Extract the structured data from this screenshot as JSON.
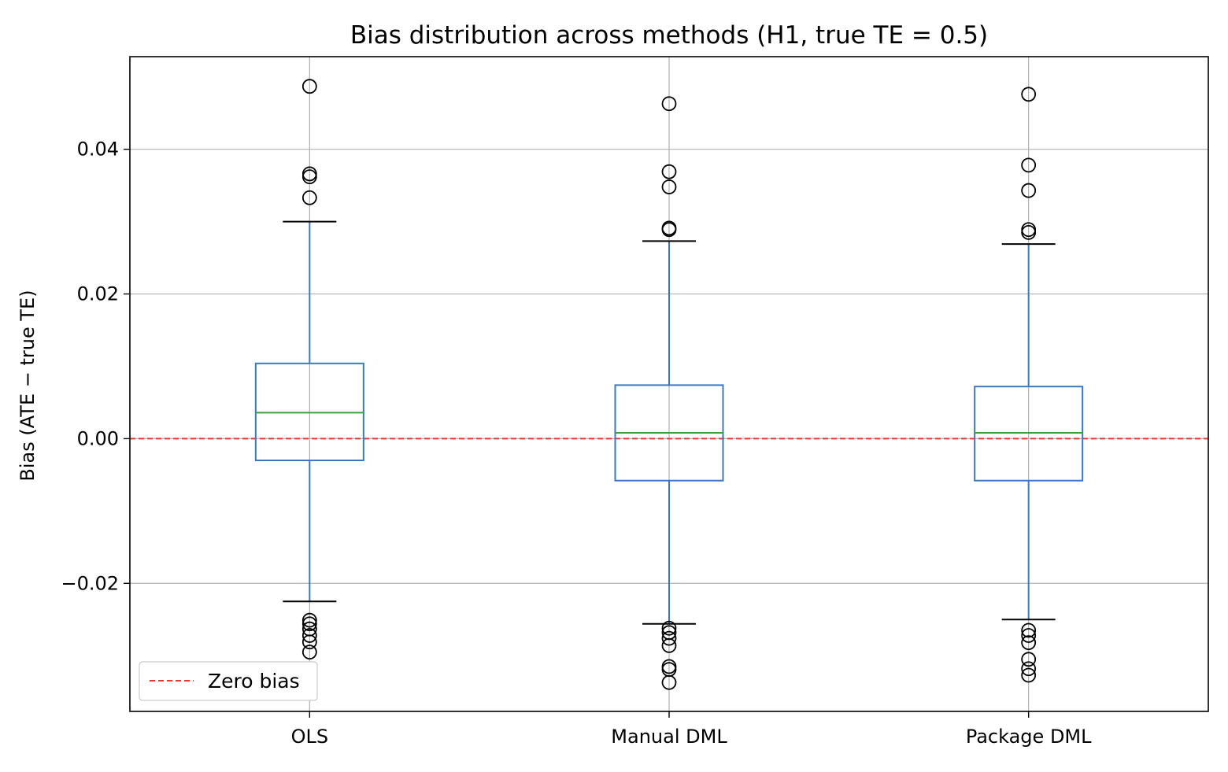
{
  "chart_data": {
    "type": "box",
    "title": "Bias distribution across methods (H1, true TE = 0.5)",
    "xlabel": "",
    "ylabel": "Bias (ATE − true TE)",
    "ylim": [
      -0.0377,
      0.0528
    ],
    "yticks": [
      -0.02,
      0.0,
      0.02,
      0.04
    ],
    "ytick_labels": [
      "−0.02",
      "0.00",
      "0.02",
      "0.04"
    ],
    "grid": true,
    "legend_position": "lower-left",
    "categories": [
      "OLS",
      "Manual DML",
      "Package DML"
    ],
    "boxes": [
      {
        "name": "OLS",
        "whisker_low": -0.0225,
        "q1": -0.003,
        "median": 0.0036,
        "q3": 0.0104,
        "whisker_high": 0.03,
        "fliers": [
          0.0487,
          0.0366,
          0.0362,
          0.0333,
          -0.0251,
          -0.0256,
          -0.0263,
          -0.0272,
          -0.0281,
          -0.0295
        ]
      },
      {
        "name": "Manual DML",
        "whisker_low": -0.0256,
        "q1": -0.0058,
        "median": 0.0008,
        "q3": 0.0074,
        "whisker_high": 0.0273,
        "fliers": [
          0.0463,
          0.0369,
          0.0348,
          0.0291,
          0.0289,
          -0.0262,
          -0.0268,
          -0.0276,
          -0.0286,
          -0.0315,
          -0.0319,
          -0.0337
        ]
      },
      {
        "name": "Package DML",
        "whisker_low": -0.025,
        "q1": -0.0058,
        "median": 0.0008,
        "q3": 0.0072,
        "whisker_high": 0.0269,
        "fliers": [
          0.0476,
          0.0378,
          0.0343,
          0.0289,
          0.0285,
          -0.0265,
          -0.0272,
          -0.0282,
          -0.0305,
          -0.0318,
          -0.0327
        ]
      }
    ],
    "reference_line": {
      "y": 0.0,
      "label": "Zero bias",
      "color": "#e8382f",
      "style": "dashed"
    },
    "legend": [
      {
        "label": "Zero bias",
        "color": "#e8382f",
        "style": "dashed"
      }
    ],
    "colors": {
      "box": "#3b78c2",
      "median": "#3aa03a",
      "whisker": "#3b78c2",
      "cap": "#000000",
      "flier": "#000000",
      "grid": "#b0b0b0"
    }
  }
}
